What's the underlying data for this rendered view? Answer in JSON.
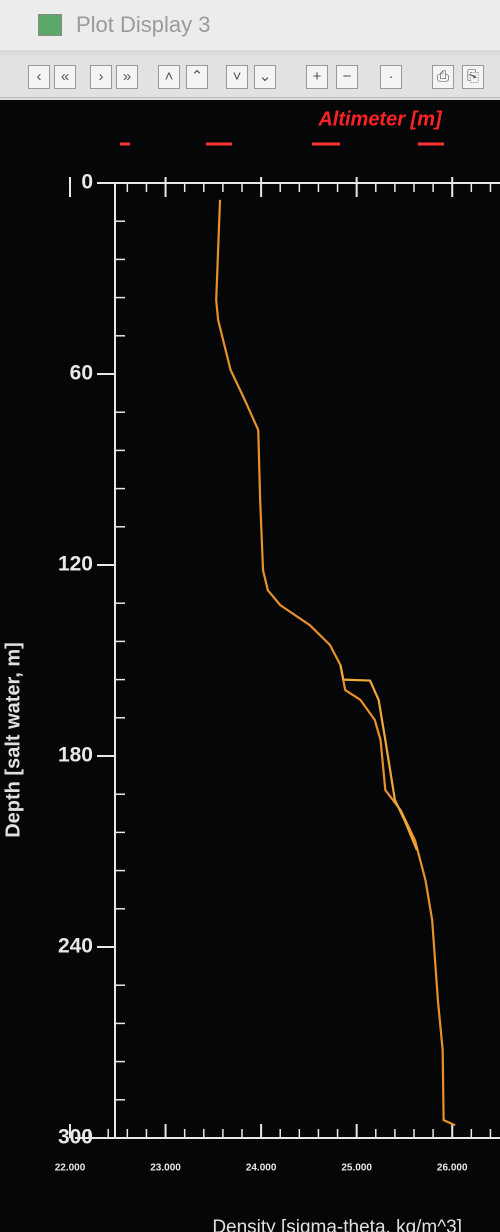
{
  "window": {
    "title": "Plot Display 3"
  },
  "chart_data": {
    "type": "line",
    "top_axis_label": "Altimeter [m]",
    "xlabel": "Density [sigma-theta, kg/m^3]",
    "ylabel": "Depth [salt water, m]",
    "xlim": [
      22,
      26.5
    ],
    "ylim": [
      0,
      300
    ],
    "y_inverted": true,
    "xticks": [
      {
        "value": 22,
        "label": "22.000"
      },
      {
        "value": 23,
        "label": "23.000"
      },
      {
        "value": 24,
        "label": "24.000"
      },
      {
        "value": 25,
        "label": "25.000"
      },
      {
        "value": 26,
        "label": "26.000"
      }
    ],
    "yticks": [
      0,
      60,
      120,
      180,
      240,
      300
    ],
    "series": [
      {
        "color": "#e8912a",
        "x": [
          23.57,
          23.53,
          23.55,
          23.68,
          23.83,
          23.97,
          23.99,
          24.02,
          24.07,
          24.2,
          24.51,
          24.72,
          24.83,
          24.88,
          25.04,
          25.19,
          25.25,
          25.3,
          25.46,
          25.61,
          25.72,
          25.79,
          25.82,
          25.85,
          25.9,
          25.91,
          26.03
        ],
        "values": [
          5.3,
          36.8,
          43.0,
          58.7,
          68.2,
          77.6,
          99.6,
          121.6,
          127.9,
          132.6,
          138.9,
          145.1,
          151.4,
          159.3,
          162.4,
          168.7,
          175.0,
          190.7,
          197.0,
          206.4,
          219.0,
          231.5,
          244.1,
          256.7,
          272.4,
          294.4,
          296.0
        ]
      },
      {
        "color": "#f0a838",
        "x": [
          24.83,
          24.86,
          25.14,
          25.23,
          25.3,
          25.4,
          25.5,
          25.63
        ],
        "values": [
          151.4,
          156.0,
          156.3,
          162.4,
          175.0,
          193.8,
          200.1,
          209.5
        ]
      }
    ]
  }
}
